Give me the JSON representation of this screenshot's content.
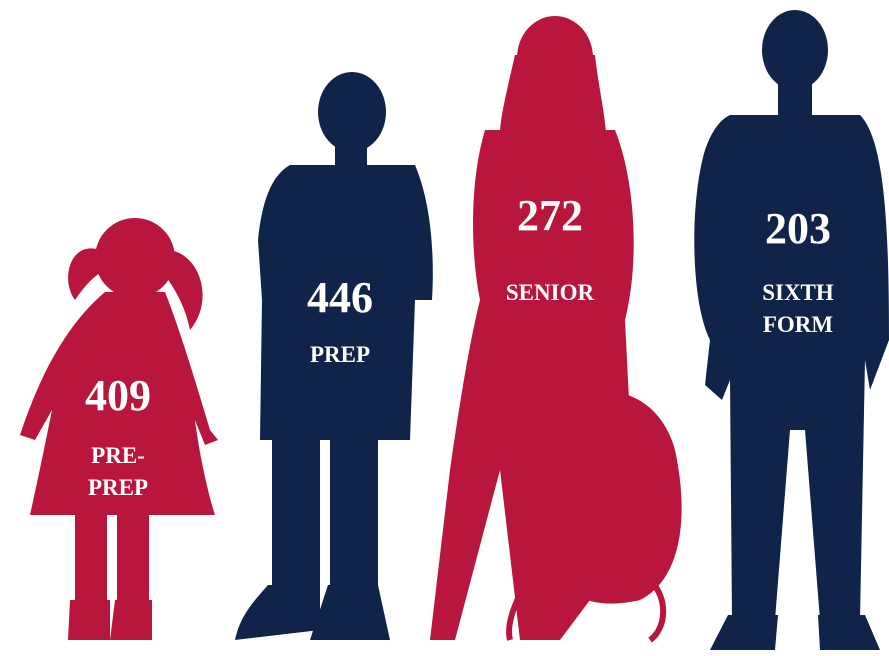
{
  "groups": [
    {
      "count": 409,
      "label_lines": [
        "PRE-",
        "PREP"
      ]
    },
    {
      "count": 446,
      "label_lines": [
        "PREP"
      ]
    },
    {
      "count": 272,
      "label_lines": [
        "SENIOR"
      ]
    },
    {
      "count": 203,
      "label_lines": [
        "SIXTH",
        "FORM"
      ]
    }
  ]
}
